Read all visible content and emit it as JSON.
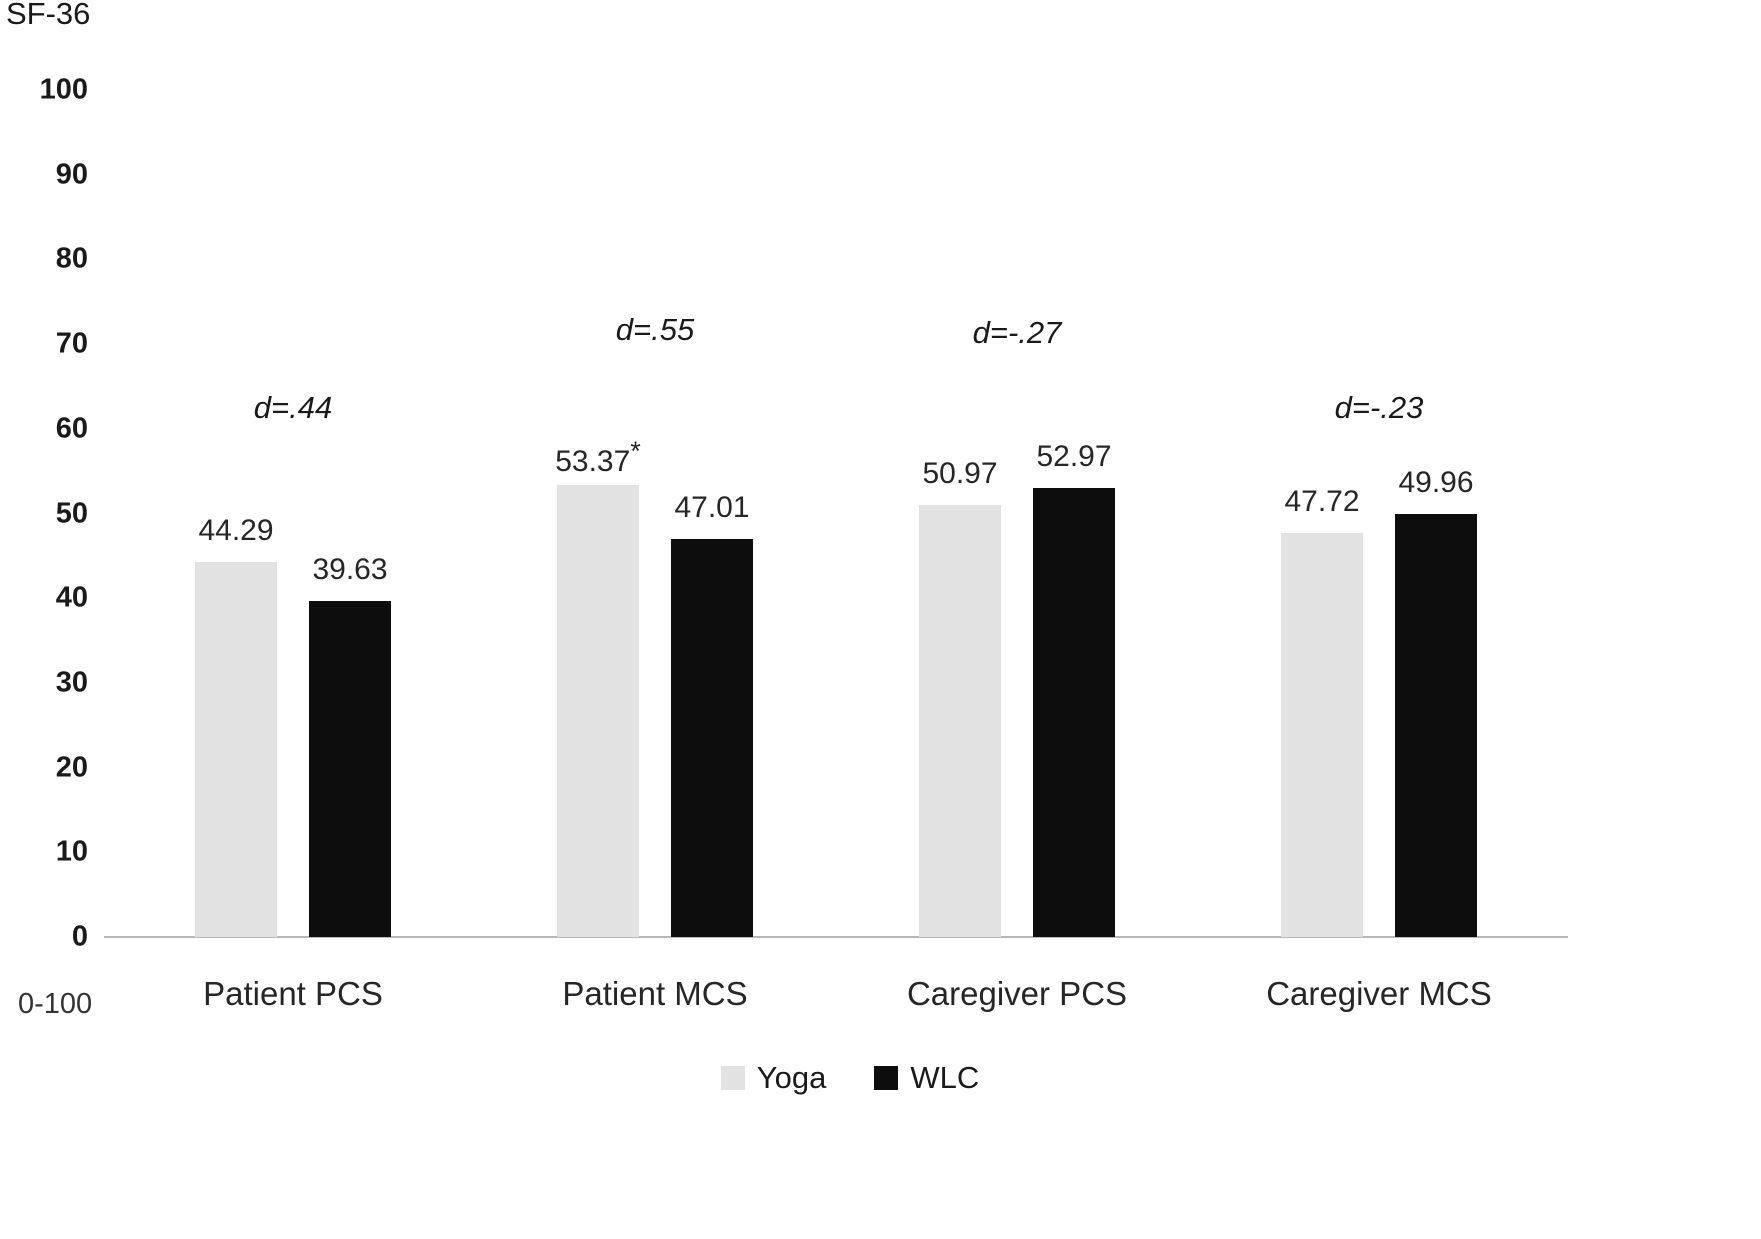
{
  "chart_data": {
    "type": "bar",
    "title": "SF-36",
    "axis_note": "0-100",
    "xlabel": "",
    "ylabel": "SF-36",
    "ylim": [
      0,
      100
    ],
    "yticks": [
      0,
      10,
      20,
      30,
      40,
      50,
      60,
      70,
      80,
      90,
      100
    ],
    "grid": false,
    "legend_position": "bottom",
    "categories": [
      "Patient PCS",
      "Patient MCS",
      "Caregiver PCS",
      "Caregiver MCS"
    ],
    "series": [
      {
        "name": "Yoga",
        "color": "#e2e2e2",
        "values": [
          44.29,
          53.37,
          50.97,
          47.72
        ],
        "labels": [
          "44.29",
          "53.37*",
          "50.97",
          "47.72"
        ]
      },
      {
        "name": "WLC",
        "color": "#0d0d0d",
        "values": [
          39.63,
          47.01,
          52.97,
          49.96
        ],
        "labels": [
          "39.63",
          "47.01",
          "52.97",
          "49.96"
        ]
      }
    ],
    "annotations": [
      {
        "category": "Patient PCS",
        "text": "d=.44"
      },
      {
        "category": "Patient MCS",
        "text": "d=.55"
      },
      {
        "category": "Caregiver PCS",
        "text": "d=-.27"
      },
      {
        "category": "Caregiver MCS",
        "text": "d=-.23"
      }
    ],
    "legend": [
      "Yoga",
      "WLC"
    ]
  }
}
